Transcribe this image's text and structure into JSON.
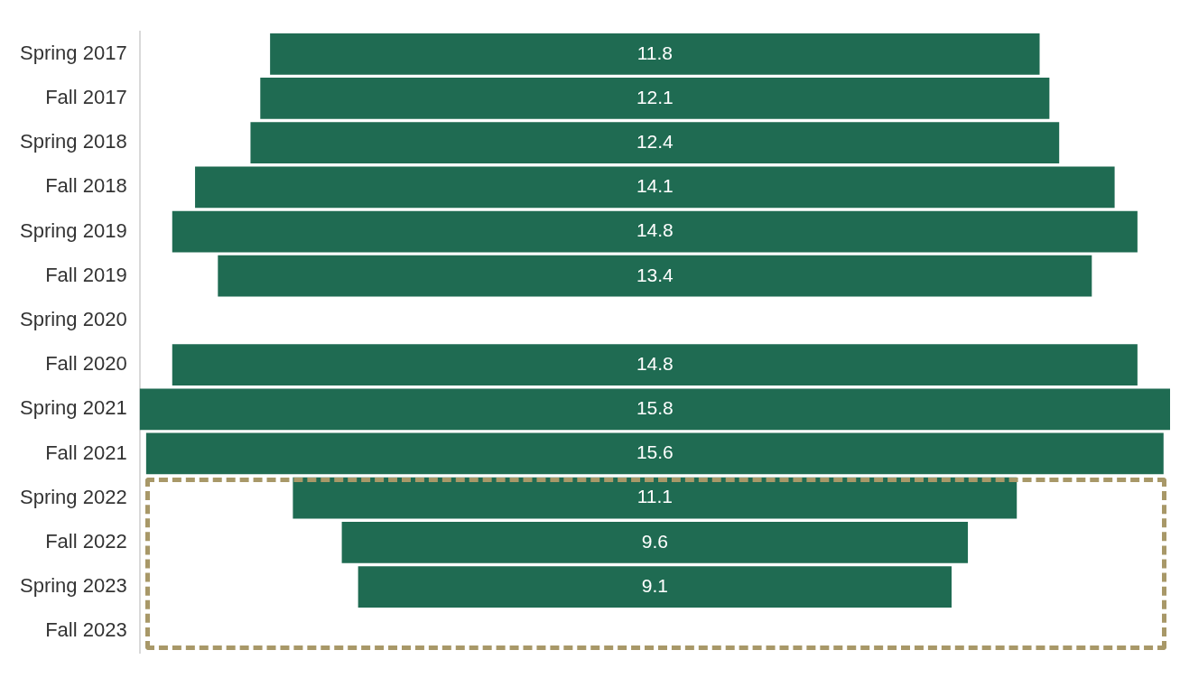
{
  "chart_data": {
    "type": "other",
    "categories": [
      "Spring 2017",
      "Fall 2017",
      "Spring 2018",
      "Fall 2018",
      "Spring 2019",
      "Fall 2019",
      "Spring 2020",
      "Fall 2020",
      "Spring 2021",
      "Fall 2021",
      "Spring 2022",
      "Fall 2022",
      "Spring 2023",
      "Fall 2023"
    ],
    "values": [
      11.8,
      12.1,
      12.4,
      14.1,
      14.8,
      13.4,
      null,
      14.8,
      15.8,
      15.6,
      11.1,
      9.6,
      9.1,
      null
    ],
    "color": "#1f6b52",
    "data_labels": true,
    "legend": false
  }
}
